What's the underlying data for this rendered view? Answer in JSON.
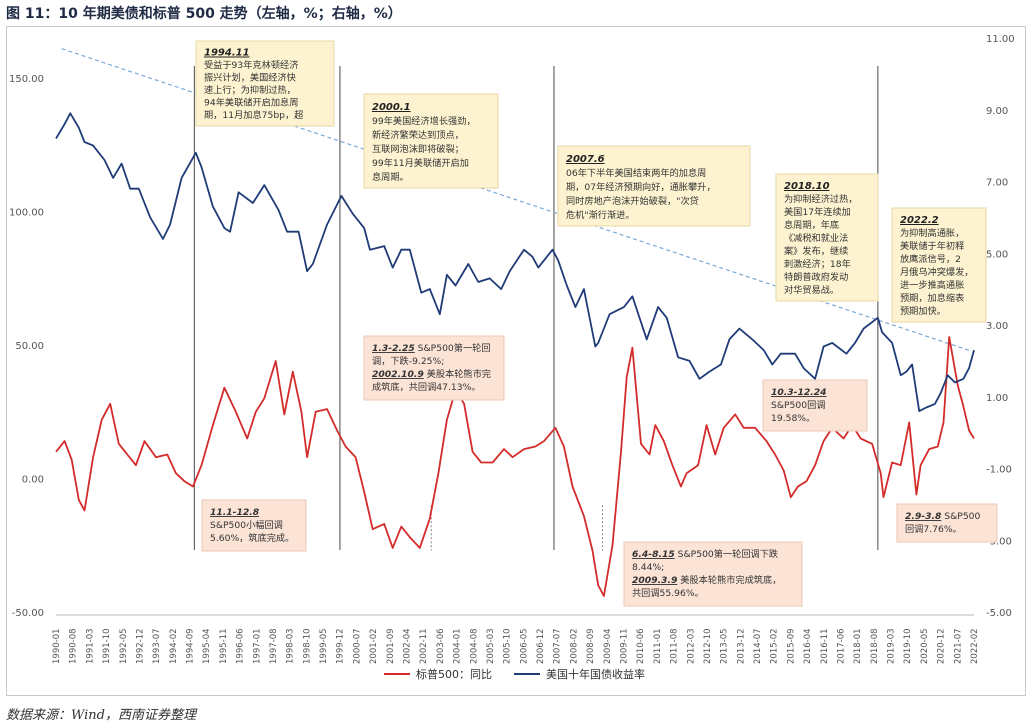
{
  "title": "图 11：10 年期美债和标普 500 走势（左轴，%；右轴，%）",
  "source": "数据来源：Wind，西南证券整理",
  "chart_data": {
    "type": "line",
    "left_axis": {
      "ticks": [
        150,
        100,
        50,
        0,
        -50
      ],
      "tick_labels": [
        "150.00",
        "100.00",
        "50.00",
        "0.00",
        "-50.00"
      ],
      "ylim": [
        -50,
        165
      ]
    },
    "right_axis": {
      "ticks": [
        11,
        9,
        7,
        5,
        3,
        1,
        -1,
        -3,
        -5
      ],
      "tick_labels": [
        "11.00",
        "9.00",
        "7.00",
        "5.00",
        "3.00",
        "1.00",
        "-1.00",
        "-3.00",
        "-5.00"
      ],
      "ylim": [
        -5,
        11
      ]
    },
    "x_labels": [
      "1990-01",
      "1990-08",
      "1991-03",
      "1991-10",
      "1992-05",
      "1992-12",
      "1993-07",
      "1994-02",
      "1994-09",
      "1995-04",
      "1995-11",
      "1996-06",
      "1997-01",
      "1997-08",
      "1998-03",
      "1998-10",
      "1999-05",
      "1999-12",
      "2000-07",
      "2001-02",
      "2001-09",
      "2002-04",
      "2002-11",
      "2003-06",
      "2004-01",
      "2004-08",
      "2005-03",
      "2005-10",
      "2006-05",
      "2006-12",
      "2007-07",
      "2008-02",
      "2008-09",
      "2009-04",
      "2009-11",
      "2010-06",
      "2011-01",
      "2011-08",
      "2012-03",
      "2012-10",
      "2013-05",
      "2013-12",
      "2014-07",
      "2015-02",
      "2015-09",
      "2016-04",
      "2016-11",
      "2017-06",
      "2018-01",
      "2018-08",
      "2019-03",
      "2019-10",
      "2020-05",
      "2020-12",
      "2021-07",
      "2022-02"
    ],
    "x_range": [
      1990.0,
      2022.17
    ],
    "series": [
      {
        "name": "标普500：同比",
        "axis": "left",
        "color": "#d42b2b",
        "points": [
          [
            1990.0,
            10
          ],
          [
            1990.3,
            14
          ],
          [
            1990.55,
            7
          ],
          [
            1990.8,
            -8
          ],
          [
            1991.0,
            -12
          ],
          [
            1991.3,
            8
          ],
          [
            1991.6,
            22
          ],
          [
            1991.9,
            28
          ],
          [
            1992.2,
            13
          ],
          [
            1992.5,
            9
          ],
          [
            1992.8,
            5
          ],
          [
            1993.1,
            14
          ],
          [
            1993.5,
            8
          ],
          [
            1993.9,
            9
          ],
          [
            1994.2,
            2
          ],
          [
            1994.5,
            -1
          ],
          [
            1994.8,
            -3
          ],
          [
            1995.1,
            5
          ],
          [
            1995.5,
            20
          ],
          [
            1995.9,
            34
          ],
          [
            1996.3,
            25
          ],
          [
            1996.7,
            15
          ],
          [
            1997.0,
            25
          ],
          [
            1997.3,
            30
          ],
          [
            1997.7,
            44
          ],
          [
            1998.0,
            24
          ],
          [
            1998.3,
            40
          ],
          [
            1998.6,
            25
          ],
          [
            1998.8,
            8
          ],
          [
            1999.1,
            25
          ],
          [
            1999.5,
            26
          ],
          [
            1999.85,
            18
          ],
          [
            2000.15,
            12
          ],
          [
            2000.5,
            8
          ],
          [
            2000.8,
            -5
          ],
          [
            2001.1,
            -19
          ],
          [
            2001.5,
            -17
          ],
          [
            2001.8,
            -26
          ],
          [
            2002.1,
            -18
          ],
          [
            2002.4,
            -22
          ],
          [
            2002.75,
            -26
          ],
          [
            2003.1,
            -15
          ],
          [
            2003.4,
            2
          ],
          [
            2003.7,
            22
          ],
          [
            2004.0,
            33
          ],
          [
            2004.3,
            28
          ],
          [
            2004.6,
            10
          ],
          [
            2004.9,
            6
          ],
          [
            2005.3,
            6
          ],
          [
            2005.7,
            11
          ],
          [
            2006.0,
            8
          ],
          [
            2006.4,
            11
          ],
          [
            2006.8,
            12
          ],
          [
            2007.1,
            14
          ],
          [
            2007.5,
            19
          ],
          [
            2007.8,
            12
          ],
          [
            2008.1,
            -3
          ],
          [
            2008.5,
            -14
          ],
          [
            2008.8,
            -27
          ],
          [
            2009.0,
            -40
          ],
          [
            2009.2,
            -44
          ],
          [
            2009.5,
            -25
          ],
          [
            2009.8,
            10
          ],
          [
            2010.0,
            38
          ],
          [
            2010.2,
            49
          ],
          [
            2010.5,
            13
          ],
          [
            2010.8,
            9
          ],
          [
            2011.0,
            20
          ],
          [
            2011.3,
            14
          ],
          [
            2011.6,
            5
          ],
          [
            2011.9,
            -3
          ],
          [
            2012.1,
            2
          ],
          [
            2012.5,
            5
          ],
          [
            2012.8,
            20
          ],
          [
            2013.1,
            9
          ],
          [
            2013.4,
            19
          ],
          [
            2013.8,
            24
          ],
          [
            2014.1,
            19
          ],
          [
            2014.5,
            19
          ],
          [
            2014.9,
            14
          ],
          [
            2015.2,
            9
          ],
          [
            2015.5,
            3
          ],
          [
            2015.75,
            -7
          ],
          [
            2016.0,
            -3
          ],
          [
            2016.3,
            -1
          ],
          [
            2016.6,
            5
          ],
          [
            2016.9,
            14
          ],
          [
            2017.2,
            19
          ],
          [
            2017.6,
            15
          ],
          [
            2017.9,
            20
          ],
          [
            2018.2,
            15
          ],
          [
            2018.6,
            13
          ],
          [
            2018.9,
            2
          ],
          [
            2019.0,
            -7
          ],
          [
            2019.3,
            6
          ],
          [
            2019.6,
            5
          ],
          [
            2019.9,
            21
          ],
          [
            2020.15,
            -6
          ],
          [
            2020.3,
            5
          ],
          [
            2020.6,
            11
          ],
          [
            2020.9,
            12
          ],
          [
            2021.1,
            21
          ],
          [
            2021.3,
            53
          ],
          [
            2021.6,
            35
          ],
          [
            2021.8,
            27
          ],
          [
            2022.0,
            18
          ],
          [
            2022.17,
            15
          ]
        ]
      },
      {
        "name": "美国十年国债收益率",
        "axis": "right",
        "color": "#1f3b78",
        "points": [
          [
            1990.0,
            8.2
          ],
          [
            1990.3,
            8.6
          ],
          [
            1990.5,
            8.9
          ],
          [
            1990.8,
            8.5
          ],
          [
            1991.0,
            8.1
          ],
          [
            1991.3,
            8.0
          ],
          [
            1991.7,
            7.6
          ],
          [
            1992.0,
            7.1
          ],
          [
            1992.3,
            7.5
          ],
          [
            1992.6,
            6.8
          ],
          [
            1992.9,
            6.8
          ],
          [
            1993.3,
            6.0
          ],
          [
            1993.75,
            5.4
          ],
          [
            1994.0,
            5.8
          ],
          [
            1994.4,
            7.1
          ],
          [
            1994.9,
            7.8
          ],
          [
            1995.1,
            7.4
          ],
          [
            1995.5,
            6.3
          ],
          [
            1995.9,
            5.7
          ],
          [
            1996.1,
            5.6
          ],
          [
            1996.4,
            6.7
          ],
          [
            1996.9,
            6.4
          ],
          [
            1997.3,
            6.9
          ],
          [
            1997.8,
            6.2
          ],
          [
            1998.1,
            5.6
          ],
          [
            1998.5,
            5.6
          ],
          [
            1998.8,
            4.5
          ],
          [
            1999.0,
            4.7
          ],
          [
            1999.5,
            5.8
          ],
          [
            2000.0,
            6.6
          ],
          [
            2000.4,
            6.1
          ],
          [
            2000.8,
            5.7
          ],
          [
            2001.0,
            5.1
          ],
          [
            2001.5,
            5.2
          ],
          [
            2001.8,
            4.6
          ],
          [
            2002.1,
            5.1
          ],
          [
            2002.4,
            5.1
          ],
          [
            2002.8,
            3.9
          ],
          [
            2003.1,
            4.0
          ],
          [
            2003.45,
            3.3
          ],
          [
            2003.7,
            4.4
          ],
          [
            2004.0,
            4.1
          ],
          [
            2004.45,
            4.7
          ],
          [
            2004.8,
            4.2
          ],
          [
            2005.2,
            4.3
          ],
          [
            2005.6,
            4.0
          ],
          [
            2005.9,
            4.5
          ],
          [
            2006.4,
            5.1
          ],
          [
            2006.7,
            4.9
          ],
          [
            2006.9,
            4.6
          ],
          [
            2007.4,
            5.1
          ],
          [
            2007.6,
            4.8
          ],
          [
            2007.9,
            4.1
          ],
          [
            2008.2,
            3.5
          ],
          [
            2008.5,
            4.0
          ],
          [
            2008.9,
            2.4
          ],
          [
            2009.0,
            2.5
          ],
          [
            2009.4,
            3.3
          ],
          [
            2009.9,
            3.5
          ],
          [
            2010.2,
            3.8
          ],
          [
            2010.7,
            2.6
          ],
          [
            2011.1,
            3.5
          ],
          [
            2011.4,
            3.2
          ],
          [
            2011.8,
            2.1
          ],
          [
            2012.2,
            2.0
          ],
          [
            2012.55,
            1.5
          ],
          [
            2012.9,
            1.7
          ],
          [
            2013.3,
            1.9
          ],
          [
            2013.6,
            2.6
          ],
          [
            2013.95,
            2.9
          ],
          [
            2014.4,
            2.6
          ],
          [
            2014.8,
            2.3
          ],
          [
            2015.1,
            1.9
          ],
          [
            2015.4,
            2.2
          ],
          [
            2015.9,
            2.2
          ],
          [
            2016.2,
            1.8
          ],
          [
            2016.6,
            1.5
          ],
          [
            2016.9,
            2.4
          ],
          [
            2017.2,
            2.5
          ],
          [
            2017.7,
            2.2
          ],
          [
            2018.0,
            2.5
          ],
          [
            2018.3,
            2.9
          ],
          [
            2018.8,
            3.2
          ],
          [
            2018.95,
            2.8
          ],
          [
            2019.3,
            2.5
          ],
          [
            2019.6,
            1.6
          ],
          [
            2019.8,
            1.7
          ],
          [
            2020.0,
            1.9
          ],
          [
            2020.25,
            0.6
          ],
          [
            2020.5,
            0.7
          ],
          [
            2020.8,
            0.8
          ],
          [
            2021.0,
            1.1
          ],
          [
            2021.25,
            1.6
          ],
          [
            2021.5,
            1.4
          ],
          [
            2021.8,
            1.5
          ],
          [
            2022.0,
            1.8
          ],
          [
            2022.17,
            2.3
          ]
        ]
      }
    ],
    "trend_line": {
      "color": "#7aa7d6",
      "from": [
        1990.2,
        161
      ],
      "to": [
        2022.0,
        48
      ]
    },
    "event_lines": [
      1994.85,
      1999.95,
      2007.45,
      2018.8
    ],
    "dotted_markers": [
      2003.15,
      2009.15
    ],
    "legend": {
      "position": "bottom",
      "items": [
        "标普500：同比",
        "美国十年国债收益率"
      ]
    },
    "annotations_yellow": [
      {
        "title": "1994.11",
        "lines": [
          "受益于93年克林顿经济",
          "振兴计划，美国经济快",
          "速上行；为抑制过热，",
          "94年美联储开启加息周",
          "期，11月加息75bp，超"
        ]
      },
      {
        "title": "2000.1",
        "lines": [
          "99年美国经济增长强劲，",
          "新经济繁荣达到顶点，",
          "互联网泡沫即将破裂；",
          "99年11月美联储开启加",
          "息周期。"
        ]
      },
      {
        "title": "2007.6",
        "lines": [
          "06年下半年美国结束两年的加息周",
          "期，07年经济预期向好，通胀攀升，",
          "同时房地产泡沫开始破裂，\"次贷",
          "危机\"渐行渐进。"
        ]
      },
      {
        "title": "2018.10",
        "lines": [
          "为抑制经济过热，",
          "美国17年连续加",
          "息周期，年底",
          "《减税和就业法",
          "案》发布，继续",
          "刺激经济；18年",
          "特朗普政府发动",
          "对华贸易战。"
        ]
      },
      {
        "title": "2022.2",
        "lines": [
          "为抑制高通胀，",
          "美联储于年初释",
          "放鹰派信号，2",
          "月俄乌冲突爆发，",
          "进一步推高通胀",
          "预期，加息缩表",
          "预期加快。"
        ]
      }
    ],
    "annotations_pink": [
      {
        "lines": [
          [
            "11.1-12.8",
            ""
          ],
          [
            "",
            "S&P500小幅回调"
          ],
          [
            "",
            "5.60%，筑底完成。"
          ]
        ]
      },
      {
        "lines": [
          [
            "1.3-2.25",
            " S&P500第一轮回"
          ],
          [
            "",
            "调，下跌-9.25%;"
          ],
          [
            "2002.10.9",
            " 美股本轮熊市完"
          ],
          [
            "",
            "成筑底，共回调47.13%。"
          ]
        ]
      },
      {
        "lines": [
          [
            "10.3-12.24",
            ""
          ],
          [
            "",
            "S&P500回调"
          ],
          [
            "",
            "19.58%。"
          ]
        ]
      },
      {
        "lines": [
          [
            "6.4-8.15",
            " S&P500第一轮回调下跌"
          ],
          [
            "",
            "8.44%;"
          ],
          [
            "2009.3.9",
            " 美股本轮熊市完成筑底，"
          ],
          [
            "",
            "共回调55.96%。"
          ]
        ]
      },
      {
        "lines": [
          [
            "2.9-3.8",
            " S&P500"
          ],
          [
            "",
            "回调7.76%。"
          ]
        ]
      }
    ]
  }
}
